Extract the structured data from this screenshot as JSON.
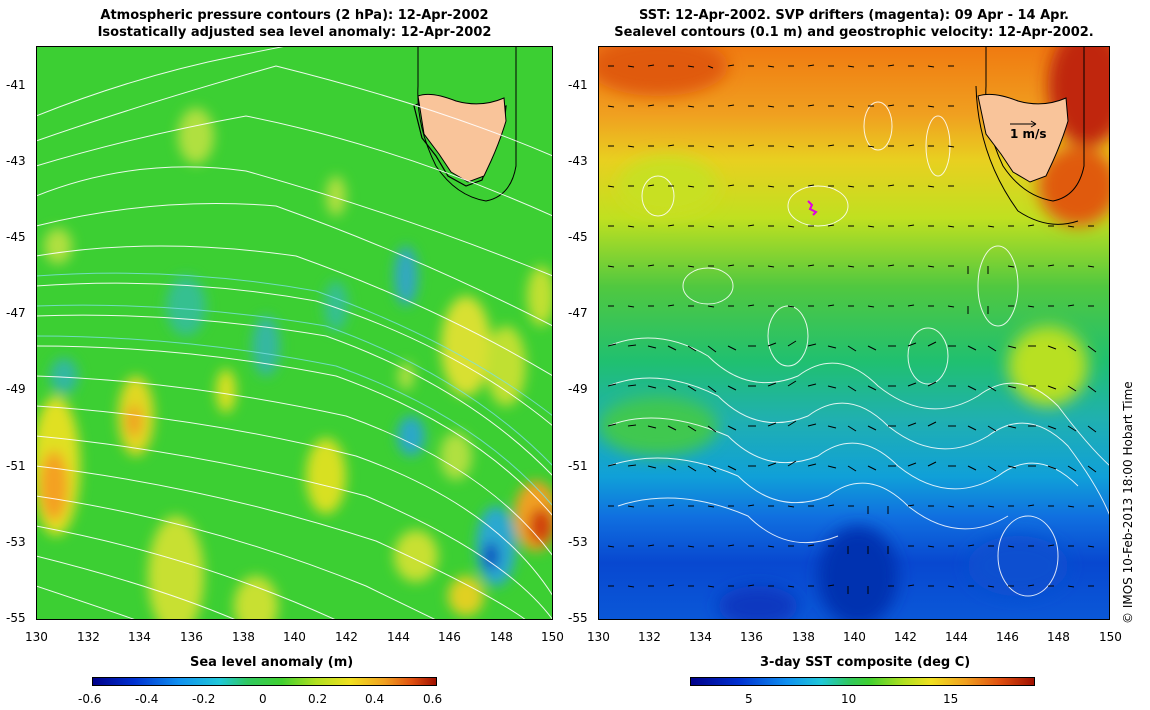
{
  "left_panel": {
    "title_line1": "Atmospheric pressure contours (2 hPa): 12-Apr-2002",
    "title_line2": "Isostatically adjusted sea level anomaly: 12-Apr-2002",
    "colorbar_title": "Sea level anomaly (m)",
    "colorbar_ticks": [
      "-0.6",
      "-0.4",
      "-0.2",
      "0",
      "0.2",
      "0.4",
      "0.6"
    ]
  },
  "right_panel": {
    "title_line1": "SST: 12-Apr-2002. SVP drifters (magenta): 09 Apr - 14 Apr.",
    "title_line2": "Sealevel contours (0.1 m) and geostrophic velocity: 12-Apr-2002.",
    "colorbar_title": "3-day SST composite (deg C)",
    "colorbar_ticks": [
      "5",
      "10",
      "15"
    ],
    "velocity_scale_label": "1 m/s"
  },
  "axes": {
    "lon_ticks": [
      "130",
      "132",
      "134",
      "136",
      "138",
      "140",
      "142",
      "144",
      "146",
      "148",
      "150"
    ],
    "lat_ticks": [
      "-41",
      "-43",
      "-45",
      "-47",
      "-49",
      "-51",
      "-53",
      "-55"
    ]
  },
  "credit": "© IMOS 10-Feb-2013 18:00 Hobart Time",
  "colors": {
    "land": "#f9c49a",
    "ocean_green": "#33cc33",
    "contour": "#ffffff",
    "drifter": "#e000e0"
  }
}
